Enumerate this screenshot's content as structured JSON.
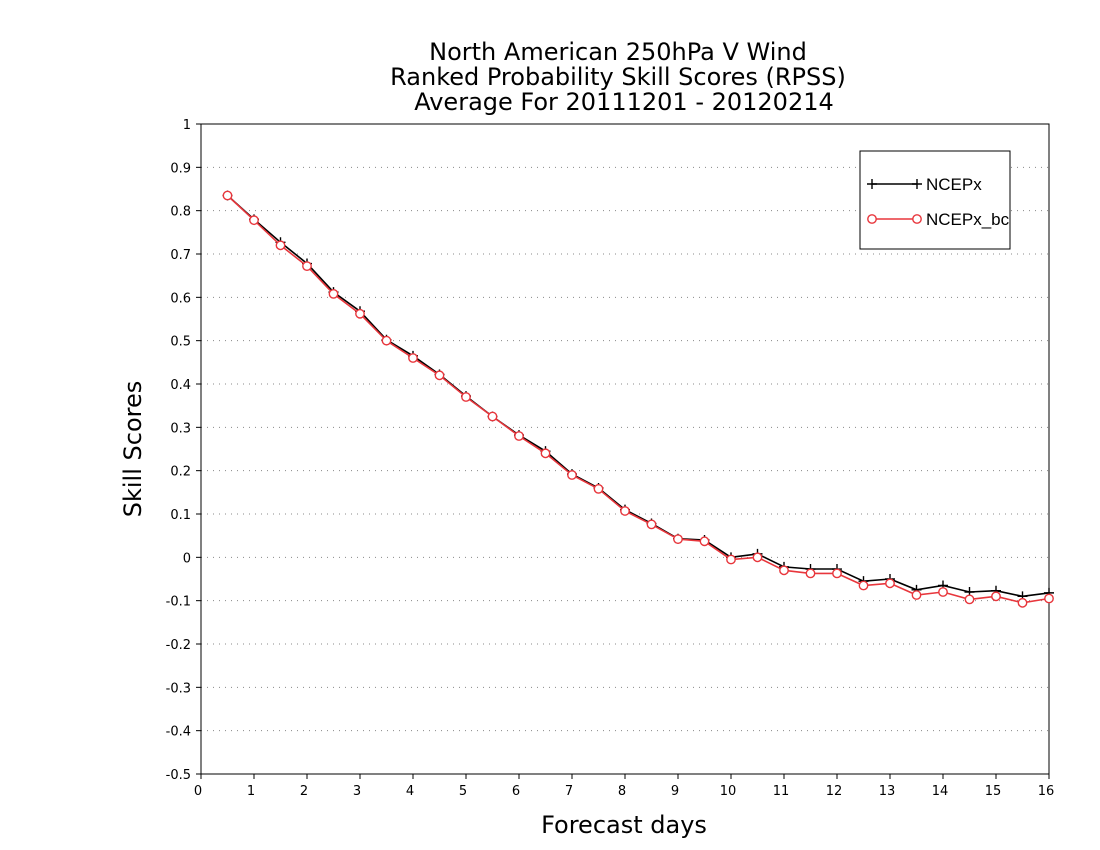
{
  "chart_data": {
    "type": "line",
    "title_lines": [
      "North American 250hPa V Wind",
      "Ranked Probability Skill Scores (RPSS)",
      "Average For 20111201 - 20120214"
    ],
    "xlabel": "Forecast days",
    "ylabel": "Skill Scores",
    "xlim": [
      0,
      16
    ],
    "ylim": [
      -0.5,
      1
    ],
    "xticks": [
      0,
      1,
      2,
      3,
      4,
      5,
      6,
      7,
      8,
      9,
      10,
      11,
      12,
      13,
      14,
      15,
      16
    ],
    "yticks": [
      -0.5,
      -0.4,
      -0.3,
      -0.2,
      -0.1,
      0,
      0.1,
      0.2,
      0.3,
      0.4,
      0.5,
      0.6,
      0.7,
      0.8,
      0.9,
      1
    ],
    "ytick_labels": [
      "-0.5",
      "-0.4",
      "-0.3",
      "-0.2",
      "-0.1",
      "0",
      "0.1",
      "0.2",
      "0.3",
      "0.4",
      "0.5",
      "0.6",
      "0.7",
      "0.8",
      "0.9",
      "1"
    ],
    "grid": "horizontal-dotted",
    "legend_position": "top-right",
    "x": [
      0.5,
      1,
      1.5,
      2,
      2.5,
      3,
      3.5,
      4,
      4.5,
      5,
      5.5,
      6,
      6.5,
      7,
      7.5,
      8,
      8.5,
      9,
      9.5,
      10,
      10.5,
      11,
      11.5,
      12,
      12.5,
      13,
      13.5,
      14,
      14.5,
      15,
      15.5,
      16
    ],
    "series": [
      {
        "name": "NCEPx",
        "color": "#000000",
        "marker": "plus",
        "values": [
          0.835,
          0.78,
          0.727,
          0.678,
          0.612,
          0.568,
          0.502,
          0.465,
          0.422,
          0.372,
          0.325,
          0.282,
          0.245,
          0.192,
          0.16,
          0.11,
          0.078,
          0.043,
          0.04,
          0.0,
          0.008,
          -0.022,
          -0.027,
          -0.027,
          -0.055,
          -0.05,
          -0.075,
          -0.065,
          -0.08,
          -0.077,
          -0.09,
          -0.082
        ]
      },
      {
        "name": "NCEPx_bc",
        "color": "#e8363c",
        "marker": "circle",
        "values": [
          0.835,
          0.778,
          0.72,
          0.672,
          0.608,
          0.562,
          0.5,
          0.46,
          0.42,
          0.37,
          0.325,
          0.28,
          0.24,
          0.19,
          0.158,
          0.107,
          0.076,
          0.042,
          0.037,
          -0.005,
          0.0,
          -0.03,
          -0.037,
          -0.037,
          -0.065,
          -0.06,
          -0.087,
          -0.08,
          -0.097,
          -0.09,
          -0.105,
          -0.095
        ]
      }
    ]
  }
}
